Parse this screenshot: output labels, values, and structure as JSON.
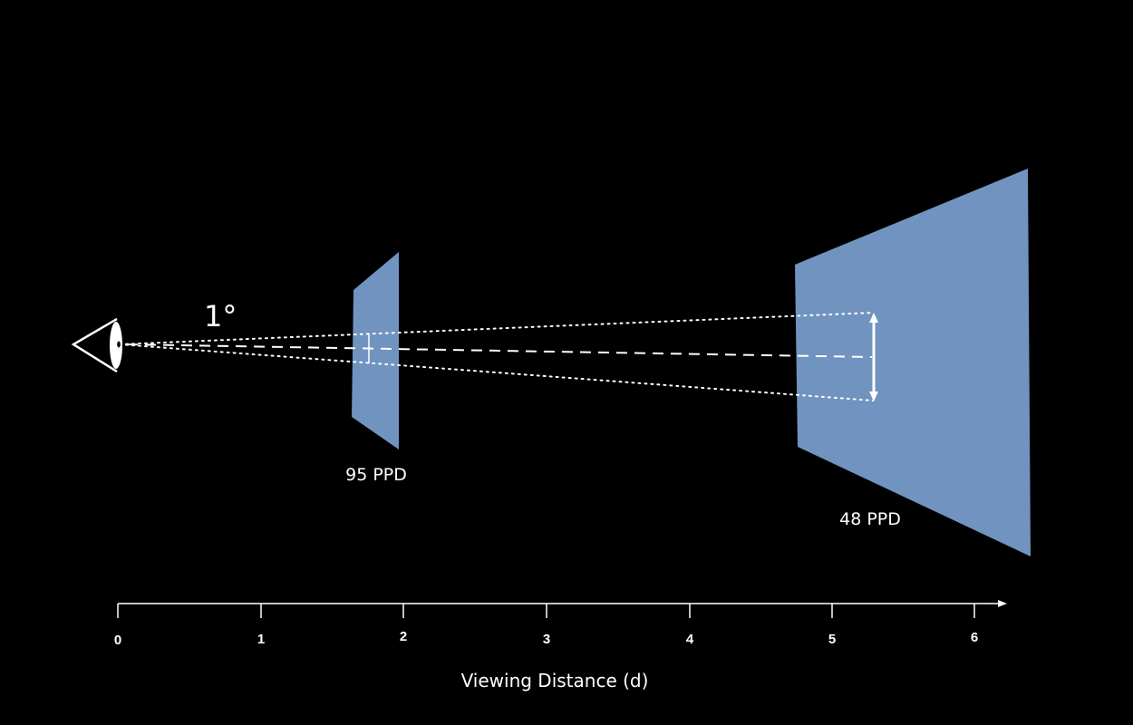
{
  "angle_label": "1°",
  "screens": [
    {
      "label": "95 PPD",
      "color": "#7193c0"
    },
    {
      "label": "48 PPD",
      "color": "#7193c0"
    }
  ],
  "axis": {
    "title": "Viewing Distance (d)",
    "ticks": [
      "0",
      "1",
      "2",
      "3",
      "4",
      "5",
      "6"
    ]
  },
  "colors": {
    "background": "#000000",
    "screen": "#7193c0",
    "lines": "#ffffff"
  }
}
